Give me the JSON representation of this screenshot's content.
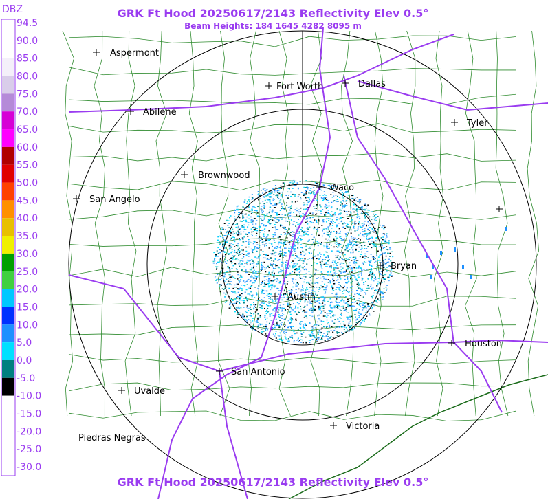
{
  "header": {
    "title": "GRK Ft Hood 20250617/2143 Reflectivity Elev 0.5°",
    "subtitle": "Beam Heights: 184 1645 4282 8095 m"
  },
  "footer": {
    "title": "GRK Ft Hood 20250617/2143 Reflectivity Elev 0.5°"
  },
  "colorbar": {
    "title": "DBZ",
    "labels": [
      "94.5",
      "90.0",
      "85.0",
      "80.0",
      "75.0",
      "70.0",
      "65.0",
      "60.0",
      "55.0",
      "50.0",
      "45.0",
      "40.0",
      "35.0",
      "30.0",
      "25.0",
      "20.0",
      "15.0",
      "10.0",
      "5.0",
      "0.0",
      "-5.0",
      "-10.0",
      "-15.0",
      "-20.0",
      "-25.0",
      "-30.0"
    ],
    "colors": [
      "#ffffff",
      "#ffffff",
      "#f4f0fa",
      "#d9cdea",
      "#b58ad8",
      "#d600d6",
      "#ff00ff",
      "#b00000",
      "#e00000",
      "#ff4000",
      "#ff9000",
      "#e8c000",
      "#f0f000",
      "#00a000",
      "#40d040",
      "#00c8ff",
      "#0030ff",
      "#1e90ff",
      "#00e0ff",
      "#008080",
      "#000000",
      "#ffffff",
      "#ffffff",
      "#ffffff",
      "#ffffff"
    ]
  },
  "cities": [
    "Aspermont",
    "Fort Worth",
    "Dallas",
    "Abilene",
    "Tyler",
    "Brownwood",
    "Waco",
    "San Angelo",
    "Bryan",
    "Austin",
    "Houston",
    "San Antonio",
    "Uvalde",
    "Victoria",
    "Piedras Negras"
  ]
}
